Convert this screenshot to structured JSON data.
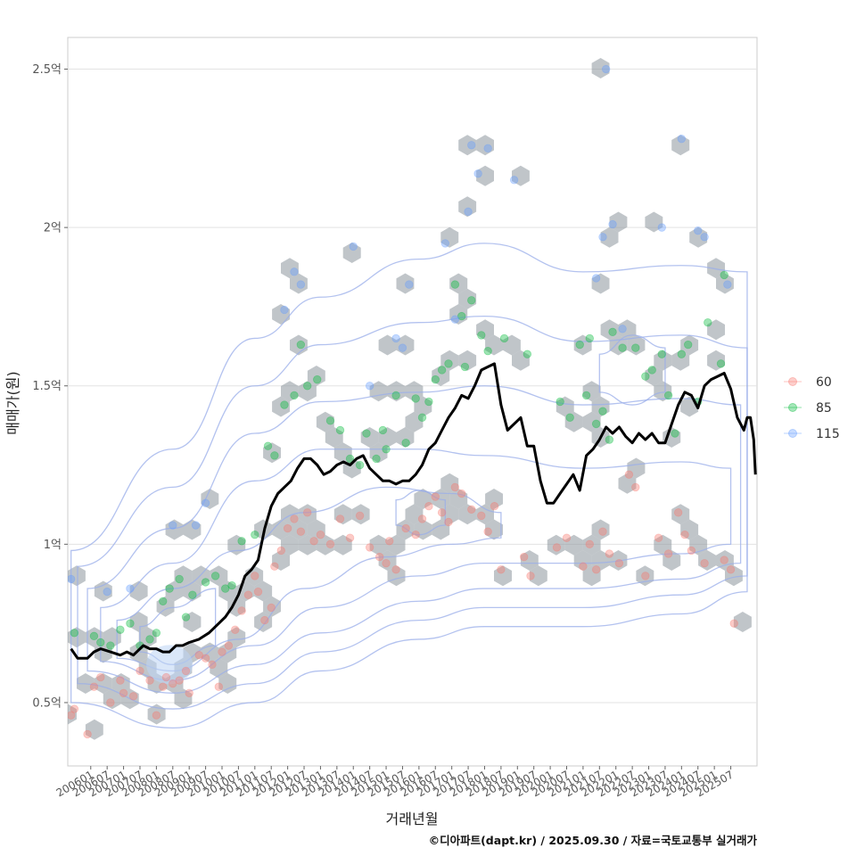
{
  "chart_data": {
    "type": "scatter",
    "title": "",
    "xlabel": "거래년월",
    "ylabel": "매매가(원)",
    "caption": "©디아파트(dapt.kr) / 2025.09.30 / 자료=국토교통부 실거래가",
    "x_range_years": [
      2005.3,
      2026.3
    ],
    "ylim": [
      0.3,
      2.6
    ],
    "grid": true,
    "legend_position": "right",
    "y_ticks": [
      {
        "value": 0.5,
        "label": "0.5억"
      },
      {
        "value": 1.0,
        "label": "1억"
      },
      {
        "value": 1.5,
        "label": "1.5억"
      },
      {
        "value": 2.0,
        "label": "2억"
      },
      {
        "value": 2.5,
        "label": "2.5억"
      }
    ],
    "x_ticks": [
      "200601",
      "200607",
      "200701",
      "200707",
      "200801",
      "200807",
      "200901",
      "200907",
      "201001",
      "201007",
      "201101",
      "201107",
      "201201",
      "201207",
      "201301",
      "201307",
      "201401",
      "201407",
      "201501",
      "201507",
      "201601",
      "201607",
      "201701",
      "201707",
      "201801",
      "201807",
      "201901",
      "201907",
      "202001",
      "202007",
      "202101",
      "202107",
      "202201",
      "202207",
      "202301",
      "202307",
      "202401",
      "202407",
      "202501",
      "202507"
    ],
    "legend": [
      {
        "name": "60",
        "color": "#F8766D"
      },
      {
        "name": "85",
        "color": "#00BA38"
      },
      {
        "name": "115",
        "color": "#619CFF"
      }
    ],
    "hexbin_color": "#8C959D",
    "contour_color": "#9AAEEA",
    "line_color": "#000000",
    "series": [
      {
        "name": "60",
        "points": [
          [
            2005.4,
            0.46
          ],
          [
            2005.5,
            0.48
          ],
          [
            2005.9,
            0.4
          ],
          [
            2006.1,
            0.55
          ],
          [
            2006.3,
            0.58
          ],
          [
            2006.6,
            0.5
          ],
          [
            2006.9,
            0.57
          ],
          [
            2007.0,
            0.53
          ],
          [
            2007.3,
            0.52
          ],
          [
            2007.5,
            0.6
          ],
          [
            2007.8,
            0.57
          ],
          [
            2008.0,
            0.46
          ],
          [
            2008.2,
            0.55
          ],
          [
            2008.3,
            0.58
          ],
          [
            2008.5,
            0.56
          ],
          [
            2008.7,
            0.57
          ],
          [
            2008.9,
            0.6
          ],
          [
            2009.0,
            0.53
          ],
          [
            2009.3,
            0.65
          ],
          [
            2009.5,
            0.64
          ],
          [
            2009.7,
            0.62
          ],
          [
            2009.9,
            0.55
          ],
          [
            2010.0,
            0.66
          ],
          [
            2010.2,
            0.68
          ],
          [
            2010.4,
            0.73
          ],
          [
            2010.6,
            0.79
          ],
          [
            2010.8,
            0.84
          ],
          [
            2011.0,
            0.9
          ],
          [
            2011.1,
            0.85
          ],
          [
            2011.3,
            0.76
          ],
          [
            2011.5,
            0.8
          ],
          [
            2011.6,
            0.93
          ],
          [
            2011.8,
            0.98
          ],
          [
            2012.0,
            1.05
          ],
          [
            2012.2,
            1.08
          ],
          [
            2012.4,
            1.04
          ],
          [
            2012.6,
            1.1
          ],
          [
            2012.8,
            1.01
          ],
          [
            2013.0,
            1.03
          ],
          [
            2013.3,
            1.0
          ],
          [
            2013.6,
            1.08
          ],
          [
            2013.9,
            1.02
          ],
          [
            2014.2,
            1.09
          ],
          [
            2014.5,
            0.99
          ],
          [
            2014.8,
            0.96
          ],
          [
            2015.0,
            0.94
          ],
          [
            2015.1,
            1.01
          ],
          [
            2015.3,
            0.92
          ],
          [
            2015.6,
            1.05
          ],
          [
            2015.9,
            1.03
          ],
          [
            2016.1,
            1.08
          ],
          [
            2016.3,
            1.12
          ],
          [
            2016.5,
            1.15
          ],
          [
            2016.7,
            1.1
          ],
          [
            2016.9,
            1.07
          ],
          [
            2017.1,
            1.18
          ],
          [
            2017.3,
            1.16
          ],
          [
            2017.6,
            1.11
          ],
          [
            2017.9,
            1.09
          ],
          [
            2018.1,
            1.04
          ],
          [
            2018.3,
            1.12
          ],
          [
            2018.5,
            0.92
          ],
          [
            2019.2,
            0.96
          ],
          [
            2019.4,
            0.9
          ],
          [
            2020.2,
            0.99
          ],
          [
            2020.5,
            1.02
          ],
          [
            2021.0,
            0.93
          ],
          [
            2021.2,
            1.0
          ],
          [
            2021.4,
            0.92
          ],
          [
            2021.6,
            1.04
          ],
          [
            2021.8,
            0.97
          ],
          [
            2022.1,
            0.94
          ],
          [
            2022.4,
            1.22
          ],
          [
            2022.6,
            1.18
          ],
          [
            2022.9,
            0.9
          ],
          [
            2023.3,
            1.02
          ],
          [
            2023.6,
            0.97
          ],
          [
            2023.9,
            1.1
          ],
          [
            2024.1,
            1.03
          ],
          [
            2024.3,
            0.98
          ],
          [
            2024.7,
            0.94
          ],
          [
            2025.3,
            0.95
          ],
          [
            2025.6,
            0.75
          ],
          [
            2025.5,
            0.92
          ]
        ]
      },
      {
        "name": "85",
        "points": [
          [
            2005.5,
            0.72
          ],
          [
            2006.1,
            0.71
          ],
          [
            2006.3,
            0.69
          ],
          [
            2006.6,
            0.68
          ],
          [
            2006.9,
            0.73
          ],
          [
            2007.2,
            0.75
          ],
          [
            2007.5,
            0.68
          ],
          [
            2007.8,
            0.7
          ],
          [
            2008.0,
            0.72
          ],
          [
            2008.2,
            0.82
          ],
          [
            2008.4,
            0.86
          ],
          [
            2008.7,
            0.89
          ],
          [
            2008.9,
            0.77
          ],
          [
            2009.1,
            0.84
          ],
          [
            2009.5,
            0.88
          ],
          [
            2009.8,
            0.9
          ],
          [
            2010.1,
            0.86
          ],
          [
            2010.3,
            0.87
          ],
          [
            2010.6,
            1.01
          ],
          [
            2011.0,
            1.03
          ],
          [
            2011.4,
            1.31
          ],
          [
            2011.6,
            1.28
          ],
          [
            2011.9,
            1.44
          ],
          [
            2012.2,
            1.47
          ],
          [
            2012.4,
            1.63
          ],
          [
            2012.6,
            1.5
          ],
          [
            2012.9,
            1.52
          ],
          [
            2013.3,
            1.39
          ],
          [
            2013.6,
            1.36
          ],
          [
            2013.9,
            1.27
          ],
          [
            2014.2,
            1.25
          ],
          [
            2014.4,
            1.35
          ],
          [
            2014.7,
            1.27
          ],
          [
            2014.9,
            1.36
          ],
          [
            2015.0,
            1.3
          ],
          [
            2015.3,
            1.47
          ],
          [
            2015.6,
            1.32
          ],
          [
            2015.9,
            1.46
          ],
          [
            2016.1,
            1.4
          ],
          [
            2016.3,
            1.45
          ],
          [
            2016.5,
            1.52
          ],
          [
            2016.7,
            1.55
          ],
          [
            2016.9,
            1.57
          ],
          [
            2017.1,
            1.82
          ],
          [
            2017.3,
            1.72
          ],
          [
            2017.4,
            1.56
          ],
          [
            2017.6,
            1.77
          ],
          [
            2017.9,
            1.66
          ],
          [
            2018.1,
            1.61
          ],
          [
            2018.6,
            1.65
          ],
          [
            2019.3,
            1.6
          ],
          [
            2020.3,
            1.45
          ],
          [
            2020.6,
            1.4
          ],
          [
            2020.9,
            1.63
          ],
          [
            2021.1,
            1.47
          ],
          [
            2021.2,
            1.65
          ],
          [
            2021.4,
            1.38
          ],
          [
            2021.6,
            1.42
          ],
          [
            2021.8,
            1.33
          ],
          [
            2021.9,
            1.67
          ],
          [
            2022.2,
            1.62
          ],
          [
            2022.6,
            1.62
          ],
          [
            2022.9,
            1.53
          ],
          [
            2023.1,
            1.55
          ],
          [
            2023.4,
            1.6
          ],
          [
            2023.6,
            1.47
          ],
          [
            2023.8,
            1.35
          ],
          [
            2024.0,
            1.6
          ],
          [
            2024.2,
            1.63
          ],
          [
            2024.5,
            1.45
          ],
          [
            2024.8,
            1.7
          ],
          [
            2025.2,
            1.57
          ],
          [
            2025.3,
            1.85
          ]
        ]
      },
      {
        "name": "115",
        "points": [
          [
            2005.4,
            0.89
          ],
          [
            2006.5,
            0.85
          ],
          [
            2007.2,
            0.86
          ],
          [
            2008.5,
            1.06
          ],
          [
            2009.2,
            1.06
          ],
          [
            2009.5,
            1.13
          ],
          [
            2011.9,
            1.74
          ],
          [
            2012.2,
            1.86
          ],
          [
            2012.4,
            1.82
          ],
          [
            2014.0,
            1.94
          ],
          [
            2014.5,
            1.5
          ],
          [
            2015.3,
            1.65
          ],
          [
            2015.5,
            1.62
          ],
          [
            2015.7,
            1.82
          ],
          [
            2016.8,
            1.95
          ],
          [
            2017.1,
            1.71
          ],
          [
            2017.6,
            2.26
          ],
          [
            2017.8,
            2.17
          ],
          [
            2017.5,
            2.05
          ],
          [
            2018.1,
            2.25
          ],
          [
            2018.9,
            2.15
          ],
          [
            2021.6,
            1.97
          ],
          [
            2021.7,
            2.5
          ],
          [
            2021.9,
            2.01
          ],
          [
            2021.4,
            1.84
          ],
          [
            2022.2,
            1.68
          ],
          [
            2023.4,
            2.0
          ],
          [
            2024.0,
            2.28
          ],
          [
            2024.5,
            1.99
          ],
          [
            2024.7,
            1.97
          ],
          [
            2025.4,
            1.82
          ]
        ]
      }
    ],
    "median_line": [
      [
        2005.4,
        0.67
      ],
      [
        2005.6,
        0.64
      ],
      [
        2005.9,
        0.64
      ],
      [
        2006.1,
        0.66
      ],
      [
        2006.3,
        0.67
      ],
      [
        2006.6,
        0.66
      ],
      [
        2006.9,
        0.65
      ],
      [
        2007.1,
        0.66
      ],
      [
        2007.3,
        0.65
      ],
      [
        2007.6,
        0.68
      ],
      [
        2007.8,
        0.67
      ],
      [
        2008.0,
        0.67
      ],
      [
        2008.2,
        0.66
      ],
      [
        2008.4,
        0.66
      ],
      [
        2008.6,
        0.68
      ],
      [
        2008.8,
        0.68
      ],
      [
        2009.0,
        0.69
      ],
      [
        2009.3,
        0.7
      ],
      [
        2009.6,
        0.72
      ],
      [
        2009.9,
        0.75
      ],
      [
        2010.1,
        0.77
      ],
      [
        2010.3,
        0.8
      ],
      [
        2010.5,
        0.84
      ],
      [
        2010.7,
        0.9
      ],
      [
        2010.9,
        0.92
      ],
      [
        2011.1,
        0.95
      ],
      [
        2011.3,
        1.05
      ],
      [
        2011.5,
        1.12
      ],
      [
        2011.7,
        1.16
      ],
      [
        2011.9,
        1.18
      ],
      [
        2012.1,
        1.2
      ],
      [
        2012.3,
        1.24
      ],
      [
        2012.5,
        1.27
      ],
      [
        2012.7,
        1.27
      ],
      [
        2012.9,
        1.25
      ],
      [
        2013.1,
        1.22
      ],
      [
        2013.3,
        1.23
      ],
      [
        2013.5,
        1.25
      ],
      [
        2013.7,
        1.26
      ],
      [
        2013.9,
        1.25
      ],
      [
        2014.1,
        1.27
      ],
      [
        2014.3,
        1.28
      ],
      [
        2014.5,
        1.24
      ],
      [
        2014.7,
        1.22
      ],
      [
        2014.9,
        1.2
      ],
      [
        2015.1,
        1.2
      ],
      [
        2015.3,
        1.19
      ],
      [
        2015.5,
        1.2
      ],
      [
        2015.7,
        1.2
      ],
      [
        2015.9,
        1.22
      ],
      [
        2016.1,
        1.25
      ],
      [
        2016.3,
        1.3
      ],
      [
        2016.5,
        1.32
      ],
      [
        2016.7,
        1.36
      ],
      [
        2016.9,
        1.4
      ],
      [
        2017.1,
        1.43
      ],
      [
        2017.3,
        1.47
      ],
      [
        2017.5,
        1.46
      ],
      [
        2017.7,
        1.5
      ],
      [
        2017.9,
        1.55
      ],
      [
        2018.1,
        1.56
      ],
      [
        2018.3,
        1.57
      ],
      [
        2018.5,
        1.44
      ],
      [
        2018.7,
        1.36
      ],
      [
        2018.9,
        1.38
      ],
      [
        2019.1,
        1.4
      ],
      [
        2019.3,
        1.31
      ],
      [
        2019.5,
        1.31
      ],
      [
        2019.7,
        1.2
      ],
      [
        2019.9,
        1.13
      ],
      [
        2020.1,
        1.13
      ],
      [
        2020.3,
        1.16
      ],
      [
        2020.5,
        1.19
      ],
      [
        2020.7,
        1.22
      ],
      [
        2020.9,
        1.17
      ],
      [
        2021.1,
        1.28
      ],
      [
        2021.3,
        1.3
      ],
      [
        2021.5,
        1.33
      ],
      [
        2021.7,
        1.37
      ],
      [
        2021.9,
        1.35
      ],
      [
        2022.1,
        1.37
      ],
      [
        2022.3,
        1.34
      ],
      [
        2022.5,
        1.32
      ],
      [
        2022.7,
        1.35
      ],
      [
        2022.9,
        1.33
      ],
      [
        2023.1,
        1.35
      ],
      [
        2023.3,
        1.32
      ],
      [
        2023.5,
        1.32
      ],
      [
        2023.7,
        1.38
      ],
      [
        2023.9,
        1.44
      ],
      [
        2024.1,
        1.48
      ],
      [
        2024.3,
        1.47
      ],
      [
        2024.5,
        1.43
      ],
      [
        2024.7,
        1.5
      ],
      [
        2024.9,
        1.52
      ],
      [
        2025.1,
        1.53
      ],
      [
        2025.3,
        1.54
      ],
      [
        2025.5,
        1.49
      ],
      [
        2025.7,
        1.4
      ],
      [
        2025.9,
        1.36
      ],
      [
        2026.0,
        1.4
      ],
      [
        2026.1,
        1.4
      ],
      [
        2026.2,
        1.33
      ],
      [
        2026.25,
        1.22
      ]
    ]
  }
}
